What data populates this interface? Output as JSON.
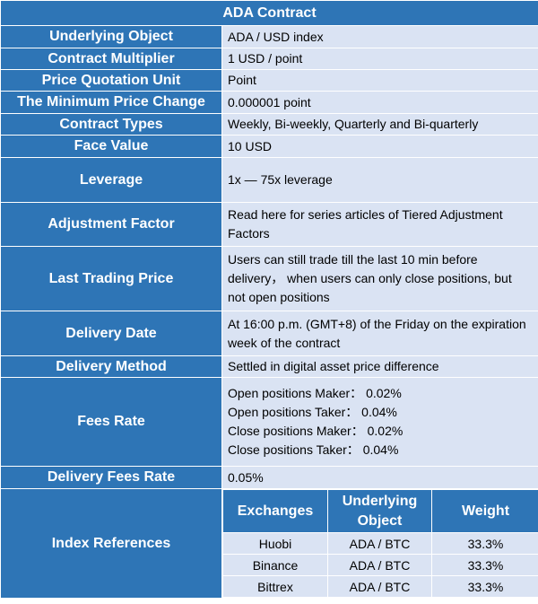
{
  "title": "ADA Contract",
  "rows": {
    "underlying_object": {
      "label": "Underlying Object",
      "value": "ADA / USD index"
    },
    "contract_multiplier": {
      "label": "Contract Multiplier",
      "value": "1 USD / point"
    },
    "price_quotation_unit": {
      "label": "Price Quotation Unit",
      "value": "Point"
    },
    "min_price_change": {
      "label": "The Minimum Price Change",
      "value": "0.000001 point"
    },
    "contract_types": {
      "label": "Contract Types",
      "value": "Weekly, Bi-weekly, Quarterly and Bi-quarterly"
    },
    "face_value": {
      "label": "Face Value",
      "value": "10 USD"
    },
    "leverage": {
      "label": "Leverage",
      "value": "1x — 75x leverage"
    },
    "adjustment_factor": {
      "label": "Adjustment Factor",
      "value": "Read here for series articles of Tiered Adjustment Factors"
    },
    "last_trading_price": {
      "label": "Last Trading Price",
      "value": "Users can still trade till the last 10 min before delivery， when users can only close positions, but not open positions"
    },
    "delivery_date": {
      "label": "Delivery Date",
      "value": "At 16:00 p.m. (GMT+8) of the Friday on the expiration week of the contract"
    },
    "delivery_method": {
      "label": "Delivery Method",
      "value": "Settled in digital asset price difference"
    },
    "fees_rate": {
      "label": "Fees Rate",
      "lines": [
        "Open positions Maker： 0.02%",
        "Open positions Taker： 0.04%",
        "Close positions Maker： 0.02%",
        "Close positions Taker： 0.04%"
      ]
    },
    "delivery_fees_rate": {
      "label": "Delivery Fees Rate",
      "value": "0.05%"
    },
    "index_references": {
      "label": "Index References",
      "headers": [
        "Exchanges",
        "Underlying Object",
        "Weight"
      ],
      "entries": [
        {
          "exchange": "Huobi",
          "object": "ADA / BTC",
          "weight": "33.3%"
        },
        {
          "exchange": "Binance",
          "object": "ADA / BTC",
          "weight": "33.3%"
        },
        {
          "exchange": "Bittrex",
          "object": "ADA / BTC",
          "weight": "33.3%"
        }
      ]
    }
  },
  "colors": {
    "header_bg": "#2e75b6",
    "cell_bg": "#dae3f3",
    "header_text": "#ffffff"
  }
}
